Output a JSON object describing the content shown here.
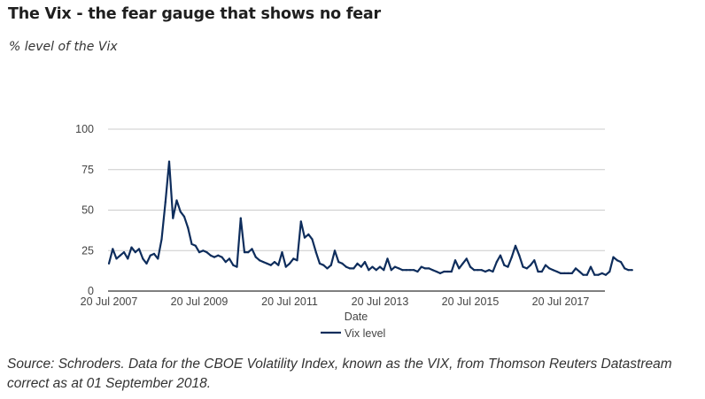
{
  "header": {
    "title": "The Vix - the fear gauge that shows no fear",
    "subtitle": "% level of the Vix"
  },
  "footer": {
    "source": "Source: Schroders. Data for the CBOE Volatility Index, known as the VIX, from Thomson Reuters Datastream correct as at 01 September 2018."
  },
  "colors": {
    "series": "#0e2d5c",
    "grid": "#cccccc",
    "axis": "#333333"
  },
  "chart_data": {
    "type": "line",
    "title": "The Vix - the fear gauge that shows no fear",
    "subtitle": "% level of the Vix",
    "xlabel": "Date",
    "ylabel": "",
    "ylim": [
      0,
      100
    ],
    "yticks": [
      0,
      25,
      50,
      75,
      100
    ],
    "xtick_labels": [
      "20 Jul 2007",
      "20 Jul 2009",
      "20 Jul 2011",
      "20 Jul 2013",
      "20 Jul 2015",
      "20 Jul 2017"
    ],
    "x_start": "Jul 2007",
    "x_end": "Aug 2018",
    "x_frequency": "monthly",
    "grid": true,
    "legend": {
      "position": "bottom",
      "entries": [
        "Vix level"
      ]
    },
    "series": [
      {
        "name": "Vix level",
        "values": [
          17,
          26,
          20,
          22,
          24,
          20,
          27,
          24,
          26,
          20,
          17,
          22,
          23,
          20,
          32,
          55,
          80,
          45,
          56,
          49,
          46,
          39,
          29,
          28,
          24,
          25,
          24,
          22,
          21,
          22,
          21,
          18,
          20,
          16,
          15,
          45,
          24,
          24,
          26,
          21,
          19,
          18,
          17,
          16,
          18,
          16,
          24,
          15,
          17,
          20,
          19,
          43,
          33,
          35,
          32,
          24,
          17,
          16,
          14,
          16,
          25,
          18,
          17,
          15,
          14,
          14,
          17,
          15,
          18,
          13,
          15,
          13,
          15,
          13,
          20,
          13,
          15,
          14,
          13,
          13,
          13,
          13,
          12,
          15,
          14,
          14,
          13,
          12,
          11,
          12,
          12,
          12,
          19,
          14,
          17,
          20,
          15,
          13,
          13,
          13,
          12,
          13,
          12,
          18,
          22,
          16,
          15,
          21,
          28,
          22,
          15,
          14,
          16,
          19,
          12,
          12,
          16,
          14,
          13,
          12,
          11,
          11,
          11,
          11,
          14,
          12,
          10,
          10,
          15,
          10,
          10,
          11,
          10,
          12,
          21,
          19,
          18,
          14,
          13,
          13
        ]
      }
    ]
  }
}
